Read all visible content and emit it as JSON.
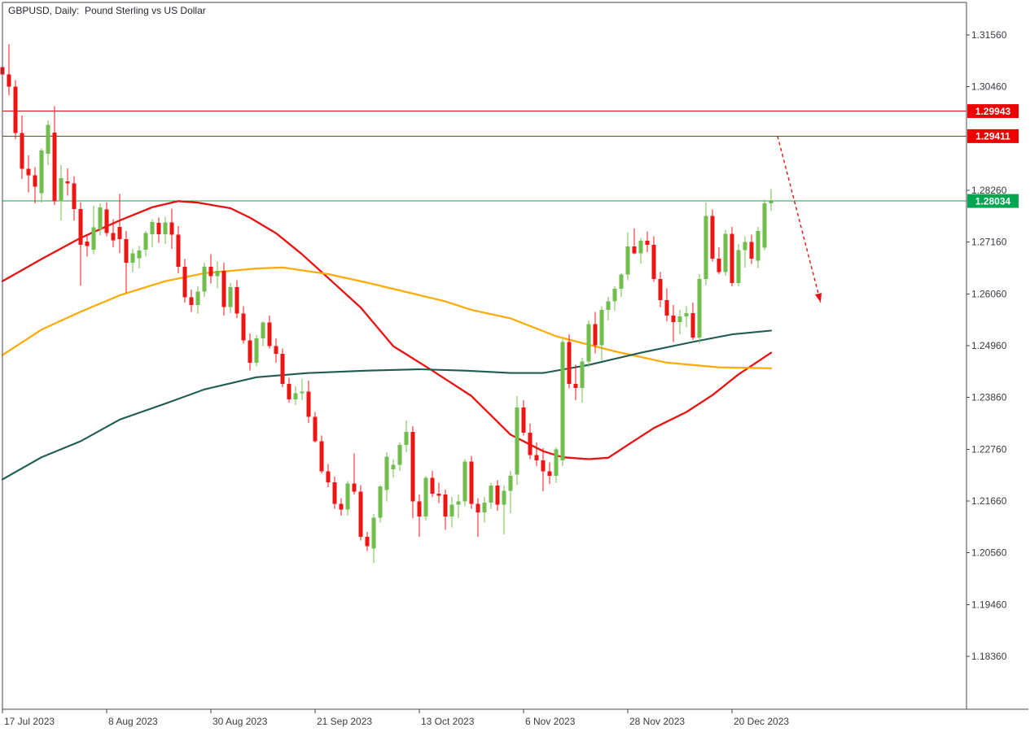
{
  "window": {
    "title": "GBPUSD, Daily:  Pound Sterling vs US Dollar"
  },
  "chart_data": {
    "type": "candlestick",
    "symbol": "GBPUSD",
    "timeframe": "Daily",
    "description": "Pound Sterling vs US Dollar",
    "grid": false,
    "legend": false,
    "ylim": [
      1.1741,
      1.3225
    ],
    "xlim_days": [
      0,
      148
    ],
    "x_axis": {
      "tick_labels": [
        "17 Jul 2023",
        "8 Aug 2023",
        "30 Aug 2023",
        "21 Sep 2023",
        "13 Oct 2023",
        "6 Nov 2023",
        "28 Nov 2023",
        "20 Dec 2023"
      ],
      "tick_days": [
        0,
        16,
        32,
        48,
        64,
        80,
        96,
        112
      ]
    },
    "y_axis": {
      "tick_labels": [
        "1.31560",
        "1.30460",
        "1.28260",
        "1.27160",
        "1.26060",
        "1.24960",
        "1.23860",
        "1.22760",
        "1.21660",
        "1.20560",
        "1.19460",
        "1.18360"
      ],
      "tick_values": [
        1.3156,
        1.3046,
        1.2826,
        1.2716,
        1.2606,
        1.2496,
        1.2386,
        1.2276,
        1.2166,
        1.2056,
        1.1946,
        1.1836
      ]
    },
    "candles_start_date": "2023-07-17",
    "candles_frequency": "trading-day",
    "candles_ohlc": [
      [
        1.3088,
        1.3112,
        1.3058,
        1.3072
      ],
      [
        1.3072,
        1.3136,
        1.3028,
        1.3046
      ],
      [
        1.3046,
        1.306,
        1.2935,
        1.2948
      ],
      [
        1.2948,
        1.2985,
        1.285,
        1.2872
      ],
      [
        1.2872,
        1.29,
        1.2822,
        1.2858
      ],
      [
        1.2858,
        1.2875,
        1.2798,
        1.2834
      ],
      [
        1.282,
        1.2915,
        1.28,
        1.2911
      ],
      [
        1.2904,
        1.2975,
        1.288,
        1.2965
      ],
      [
        1.2949,
        1.3005,
        1.2795,
        1.2803
      ],
      [
        1.2803,
        1.288,
        1.2762,
        1.2852
      ],
      [
        1.2845,
        1.2873,
        1.2815,
        1.2841
      ],
      [
        1.2841,
        1.2855,
        1.2762,
        1.2786
      ],
      [
        1.2786,
        1.28,
        1.2624,
        1.271
      ],
      [
        1.2717,
        1.273,
        1.2685,
        1.2708
      ],
      [
        1.27,
        1.2793,
        1.269,
        1.2747
      ],
      [
        1.2743,
        1.2798,
        1.273,
        1.279
      ],
      [
        1.2785,
        1.28,
        1.2728,
        1.2735
      ],
      [
        1.2735,
        1.2765,
        1.2705,
        1.272
      ],
      [
        1.2748,
        1.2818,
        1.2693,
        1.2722
      ],
      [
        1.2722,
        1.274,
        1.2608,
        1.2672
      ],
      [
        1.2672,
        1.2702,
        1.2652,
        1.2692
      ],
      [
        1.2682,
        1.2708,
        1.266,
        1.2698
      ],
      [
        1.27,
        1.274,
        1.2685,
        1.2735
      ],
      [
        1.2733,
        1.2765,
        1.2705,
        1.2759
      ],
      [
        1.2757,
        1.2768,
        1.2715,
        1.2733
      ],
      [
        1.2733,
        1.277,
        1.2712,
        1.2758
      ],
      [
        1.2758,
        1.2787,
        1.2702,
        1.2732
      ],
      [
        1.2732,
        1.275,
        1.265,
        1.2664
      ],
      [
        1.2664,
        1.268,
        1.2588,
        1.2599
      ],
      [
        1.2599,
        1.2615,
        1.2568,
        1.2582
      ],
      [
        1.2582,
        1.2622,
        1.2564,
        1.2611
      ],
      [
        1.2611,
        1.2672,
        1.26,
        1.2664
      ],
      [
        1.2664,
        1.269,
        1.2628,
        1.2644
      ],
      [
        1.2644,
        1.2675,
        1.2618,
        1.2655
      ],
      [
        1.2655,
        1.2672,
        1.256,
        1.2578
      ],
      [
        1.2578,
        1.263,
        1.2565,
        1.262
      ],
      [
        1.262,
        1.2635,
        1.2555,
        1.2564
      ],
      [
        1.2564,
        1.258,
        1.25,
        1.2507
      ],
      [
        1.2507,
        1.2522,
        1.2443,
        1.246
      ],
      [
        1.246,
        1.2519,
        1.2452,
        1.2512
      ],
      [
        1.2512,
        1.2548,
        1.2495,
        1.2545
      ],
      [
        1.2545,
        1.256,
        1.249,
        1.2495
      ],
      [
        1.2495,
        1.2512,
        1.246,
        1.2479
      ],
      [
        1.2479,
        1.249,
        1.2408,
        1.2415
      ],
      [
        1.2415,
        1.2428,
        1.2375,
        1.2382
      ],
      [
        1.2382,
        1.241,
        1.237,
        1.2395
      ],
      [
        1.2395,
        1.2425,
        1.238,
        1.2398
      ],
      [
        1.2398,
        1.2422,
        1.2332,
        1.2345
      ],
      [
        1.2345,
        1.2355,
        1.229,
        1.2293
      ],
      [
        1.2293,
        1.2305,
        1.2225,
        1.2229
      ],
      [
        1.2229,
        1.2245,
        1.2195,
        1.2206
      ],
      [
        1.2206,
        1.2218,
        1.215,
        1.216
      ],
      [
        1.216,
        1.2172,
        1.2135,
        1.2148
      ],
      [
        1.2148,
        1.2208,
        1.2135,
        1.2203
      ],
      [
        1.2203,
        1.2267,
        1.218,
        1.2186
      ],
      [
        1.2186,
        1.22,
        1.2082,
        1.209
      ],
      [
        1.209,
        1.21,
        1.206,
        1.207
      ],
      [
        1.2065,
        1.2138,
        1.2034,
        1.2131
      ],
      [
        1.2131,
        1.22,
        1.212,
        1.2197
      ],
      [
        1.2189,
        1.227,
        1.2165,
        1.226
      ],
      [
        1.2233,
        1.2255,
        1.2215,
        1.2243
      ],
      [
        1.2243,
        1.229,
        1.223,
        1.2285
      ],
      [
        1.2285,
        1.2337,
        1.227,
        1.2313
      ],
      [
        1.2313,
        1.2325,
        1.213,
        1.2165
      ],
      [
        1.2165,
        1.218,
        1.209,
        1.2133
      ],
      [
        1.2133,
        1.222,
        1.2125,
        1.2215
      ],
      [
        1.2215,
        1.223,
        1.2175,
        1.2182
      ],
      [
        1.2182,
        1.2205,
        1.2162,
        1.2177
      ],
      [
        1.218,
        1.219,
        1.2105,
        1.2133
      ],
      [
        1.2133,
        1.2175,
        1.211,
        1.2158
      ],
      [
        1.2158,
        1.218,
        1.213,
        1.2165
      ],
      [
        1.2165,
        1.2255,
        1.2155,
        1.225
      ],
      [
        1.225,
        1.2262,
        1.215,
        1.216
      ],
      [
        1.216,
        1.2172,
        1.209,
        1.2142
      ],
      [
        1.2142,
        1.2175,
        1.212,
        1.2163
      ],
      [
        1.2163,
        1.2205,
        1.215,
        1.2199
      ],
      [
        1.2199,
        1.221,
        1.2145,
        1.2158
      ],
      [
        1.2158,
        1.22,
        1.2095,
        1.2188
      ],
      [
        1.2188,
        1.223,
        1.214,
        1.222
      ],
      [
        1.2222,
        1.2389,
        1.22,
        1.2365
      ],
      [
        1.2365,
        1.238,
        1.2305,
        1.2311
      ],
      [
        1.2311,
        1.233,
        1.2255,
        1.2264
      ],
      [
        1.2264,
        1.229,
        1.224,
        1.2252
      ],
      [
        1.2252,
        1.2278,
        1.2187,
        1.2229
      ],
      [
        1.2229,
        1.2248,
        1.2202,
        1.222
      ],
      [
        1.222,
        1.228,
        1.2205,
        1.2276
      ],
      [
        1.2252,
        1.251,
        1.224,
        1.2504
      ],
      [
        1.2504,
        1.252,
        1.2405,
        1.2415
      ],
      [
        1.2415,
        1.2455,
        1.238,
        1.2406
      ],
      [
        1.2406,
        1.247,
        1.2375,
        1.2462
      ],
      [
        1.2462,
        1.255,
        1.245,
        1.2542
      ],
      [
        1.2542,
        1.2568,
        1.248,
        1.2497
      ],
      [
        1.2497,
        1.258,
        1.2465,
        1.2572
      ],
      [
        1.2572,
        1.26,
        1.255,
        1.259
      ],
      [
        1.259,
        1.2622,
        1.257,
        1.2617
      ],
      [
        1.2617,
        1.265,
        1.26,
        1.2647
      ],
      [
        1.2647,
        1.2737,
        1.2635,
        1.2707
      ],
      [
        1.2707,
        1.2745,
        1.269,
        1.2692
      ],
      [
        1.2692,
        1.2725,
        1.267,
        1.2719
      ],
      [
        1.2719,
        1.2739,
        1.2695,
        1.271
      ],
      [
        1.271,
        1.2728,
        1.2632,
        1.2638
      ],
      [
        1.2638,
        1.2652,
        1.2578,
        1.2593
      ],
      [
        1.2593,
        1.2618,
        1.2548,
        1.256
      ],
      [
        1.256,
        1.2582,
        1.2504,
        1.2546
      ],
      [
        1.2546,
        1.2572,
        1.252,
        1.2558
      ],
      [
        1.2558,
        1.258,
        1.2535,
        1.2565
      ],
      [
        1.2565,
        1.2588,
        1.2508,
        1.2513
      ],
      [
        1.2513,
        1.2648,
        1.25,
        1.2638
      ],
      [
        1.2638,
        1.28,
        1.2625,
        1.2772
      ],
      [
        1.2772,
        1.2785,
        1.2675,
        1.2681
      ],
      [
        1.2681,
        1.2705,
        1.2648,
        1.2652
      ],
      [
        1.2652,
        1.2742,
        1.2645,
        1.2734
      ],
      [
        1.2734,
        1.2748,
        1.2622,
        1.2629
      ],
      [
        1.2629,
        1.2712,
        1.2622,
        1.2699
      ],
      [
        1.2699,
        1.2728,
        1.2662,
        1.2716
      ],
      [
        1.2716,
        1.2732,
        1.267,
        1.2681
      ],
      [
        1.2677,
        1.2748,
        1.2661,
        1.274
      ],
      [
        1.2704,
        1.2806,
        1.2698,
        1.2798
      ],
      [
        1.2798,
        1.2829,
        1.2782,
        1.2803
      ]
    ],
    "moving_averages": [
      {
        "name": "ma-fast-red",
        "color": "#E81010",
        "width": 2.3,
        "points": [
          [
            0,
            1.2633
          ],
          [
            6,
            1.268
          ],
          [
            12,
            1.2725
          ],
          [
            18,
            1.2762
          ],
          [
            23,
            1.279
          ],
          [
            27,
            1.2803
          ],
          [
            30,
            1.28
          ],
          [
            35,
            1.2788
          ],
          [
            38,
            1.2768
          ],
          [
            42,
            1.2735
          ],
          [
            46,
            1.269
          ],
          [
            50,
            1.264
          ],
          [
            55,
            1.2577
          ],
          [
            60,
            1.2495
          ],
          [
            66,
            1.2443
          ],
          [
            72,
            1.2389
          ],
          [
            78,
            1.2307
          ],
          [
            83,
            1.2272
          ],
          [
            86,
            1.2259
          ],
          [
            90,
            1.2255
          ],
          [
            93,
            1.2258
          ],
          [
            96,
            1.2285
          ],
          [
            100,
            1.2321
          ],
          [
            105,
            1.2355
          ],
          [
            109,
            1.2391
          ],
          [
            113,
            1.2435
          ],
          [
            118,
            1.2481
          ]
        ]
      },
      {
        "name": "ma-mid-orange",
        "color": "#FFAA00",
        "width": 2.2,
        "points": [
          [
            0,
            1.2476
          ],
          [
            6,
            1.253
          ],
          [
            12,
            1.2568
          ],
          [
            18,
            1.2603
          ],
          [
            25,
            1.2633
          ],
          [
            31,
            1.265
          ],
          [
            39,
            1.266
          ],
          [
            43,
            1.2662
          ],
          [
            50,
            1.2648
          ],
          [
            56,
            1.263
          ],
          [
            62,
            1.261
          ],
          [
            68,
            1.259
          ],
          [
            72,
            1.2572
          ],
          [
            78,
            1.2554
          ],
          [
            85,
            1.2516
          ],
          [
            94,
            1.2484
          ],
          [
            102,
            1.246
          ],
          [
            110,
            1.245
          ],
          [
            118,
            1.2448
          ]
        ]
      },
      {
        "name": "ma-slow-teal",
        "color": "#1E5B53",
        "width": 2.1,
        "points": [
          [
            0,
            1.2212
          ],
          [
            6,
            1.2259
          ],
          [
            12,
            1.2293
          ],
          [
            18,
            1.2339
          ],
          [
            25,
            1.2373
          ],
          [
            31,
            1.2403
          ],
          [
            39,
            1.2429
          ],
          [
            47,
            1.2438
          ],
          [
            56,
            1.2443
          ],
          [
            64,
            1.2446
          ],
          [
            71,
            1.2443
          ],
          [
            78,
            1.2438
          ],
          [
            83,
            1.2438
          ],
          [
            90,
            1.2455
          ],
          [
            98,
            1.2481
          ],
          [
            106,
            1.2504
          ],
          [
            112,
            1.252
          ],
          [
            118,
            1.2528
          ]
        ]
      }
    ],
    "price_markers": [
      {
        "price": 1.29943,
        "label": "1.29943",
        "line_color": "#E01414",
        "box_color": "#EF0000"
      },
      {
        "price": 1.29411,
        "label": "1.29411",
        "line_color": "#E01414",
        "box_color": "#EF0000"
      },
      {
        "price": 1.28034,
        "label": "1.28034",
        "line_color": "#0FA555",
        "box_color": "#00A650"
      }
    ],
    "trend_arrow": {
      "from": {
        "day": 119,
        "price": 1.29411
      },
      "to": {
        "day": 125.6,
        "price": 1.2588
      },
      "color": "#E01414",
      "dashed": true
    },
    "colors": {
      "bull": "#70BE4E",
      "bear": "#EE1515",
      "axis": "#44444C",
      "tick_text": "#3A3A42",
      "background": "#FFFFFF"
    }
  }
}
